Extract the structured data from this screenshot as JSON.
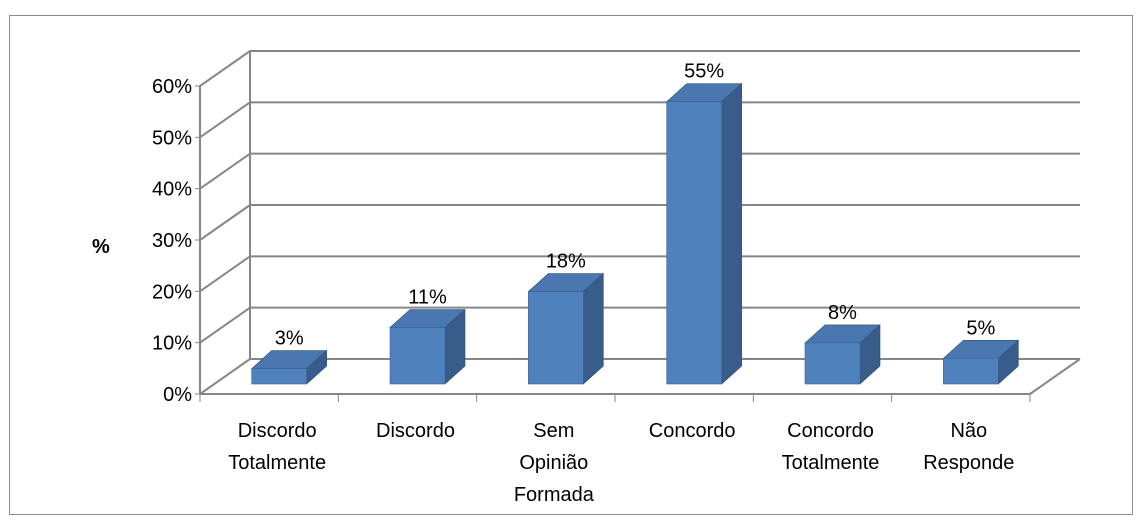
{
  "chart_data": {
    "type": "bar",
    "style": "3d-column",
    "categories": [
      [
        "Discordo",
        "Totalmente"
      ],
      [
        "Discordo"
      ],
      [
        "Sem",
        "Opinião",
        "Formada"
      ],
      [
        "Concordo"
      ],
      [
        "Concordo",
        "Totalmente"
      ],
      [
        "Não",
        "Responde"
      ]
    ],
    "values": [
      3,
      11,
      18,
      55,
      8,
      5
    ],
    "data_labels": [
      "3%",
      "11%",
      "18%",
      "55%",
      "8%",
      "5%"
    ],
    "ylabel": "%",
    "ylim": [
      0,
      60
    ],
    "yticks": [
      "0%",
      "10%",
      "20%",
      "30%",
      "40%",
      "50%",
      "60%"
    ],
    "grid": true,
    "legend": "none",
    "colors": {
      "front": "#4f81bd",
      "side": "#385d8a",
      "top": "#4a77b0",
      "grid": "#868686"
    }
  }
}
